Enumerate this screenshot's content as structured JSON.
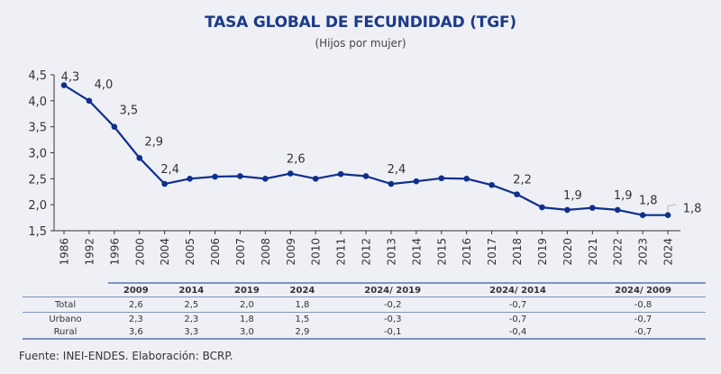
{
  "header": {
    "title": "TASA GLOBAL DE FECUNDIDAD (TGF)",
    "subtitle": "(Hijos por mujer)"
  },
  "colors": {
    "line": "#0e2f8c",
    "title": "#1b3a8a",
    "table_rule": "#7d93bf",
    "background": "#eef0f5"
  },
  "chart_data": {
    "type": "line",
    "title": "TASA GLOBAL DE FECUNDIDAD (TGF)",
    "subtitle": "(Hijos por mujer)",
    "xlabel": "",
    "ylabel": "",
    "ylim": [
      1.5,
      4.5
    ],
    "yticks": [
      1.5,
      2.0,
      2.5,
      3.0,
      3.5,
      4.0,
      4.5
    ],
    "ytick_labels": [
      "1,5",
      "2,0",
      "2,5",
      "3,0",
      "3,5",
      "4,0",
      "4,5"
    ],
    "grid": false,
    "legend": "none",
    "categories": [
      "1986",
      "1992",
      "1996",
      "2000",
      "2004",
      "2005",
      "2006",
      "2007",
      "2008",
      "2009",
      "2010",
      "2011",
      "2012",
      "2013",
      "2014",
      "2015",
      "2016",
      "2017",
      "2018",
      "2019",
      "2020",
      "2021",
      "2022",
      "2023",
      "2024"
    ],
    "series": [
      {
        "name": "TGF",
        "values": [
          4.3,
          4.0,
          3.5,
          2.9,
          2.4,
          2.5,
          2.54,
          2.55,
          2.5,
          2.6,
          2.5,
          2.59,
          2.55,
          2.4,
          2.45,
          2.51,
          2.5,
          2.38,
          2.2,
          1.95,
          1.9,
          1.94,
          1.9,
          1.8,
          1.8
        ]
      }
    ],
    "data_labels": [
      {
        "category": "1986",
        "text": "4,3"
      },
      {
        "category": "1992",
        "text": "4,0"
      },
      {
        "category": "1996",
        "text": "3,5"
      },
      {
        "category": "2000",
        "text": "2,9"
      },
      {
        "category": "2004",
        "text": "2,4"
      },
      {
        "category": "2009",
        "text": "2,6"
      },
      {
        "category": "2013",
        "text": "2,4"
      },
      {
        "category": "2018",
        "text": "2,2"
      },
      {
        "category": "2020",
        "text": "1,9"
      },
      {
        "category": "2022",
        "text": "1,9"
      },
      {
        "category": "2023",
        "text": "1,8"
      },
      {
        "category": "2024",
        "text": "1,8"
      }
    ]
  },
  "table": {
    "columns": [
      "2009",
      "2014",
      "2019",
      "2024",
      "2024/ 2019",
      "2024/ 2014",
      "2024/ 2009"
    ],
    "rows": [
      {
        "label": "Total",
        "values": [
          "2,6",
          "2,5",
          "2,0",
          "1,8",
          "-0,2",
          "-0,7",
          "-0,8"
        ]
      },
      {
        "label": "Urbano",
        "values": [
          "2,3",
          "2,3",
          "1,8",
          "1,5",
          "-0,3",
          "-0,7",
          "-0,7"
        ]
      },
      {
        "label": "Rural",
        "values": [
          "3,6",
          "3,3",
          "3,0",
          "2,9",
          "-0,1",
          "-0,4",
          "-0,7"
        ]
      }
    ]
  },
  "footer": {
    "source": "Fuente: INEI-ENDES. Elaboración: BCRP."
  }
}
